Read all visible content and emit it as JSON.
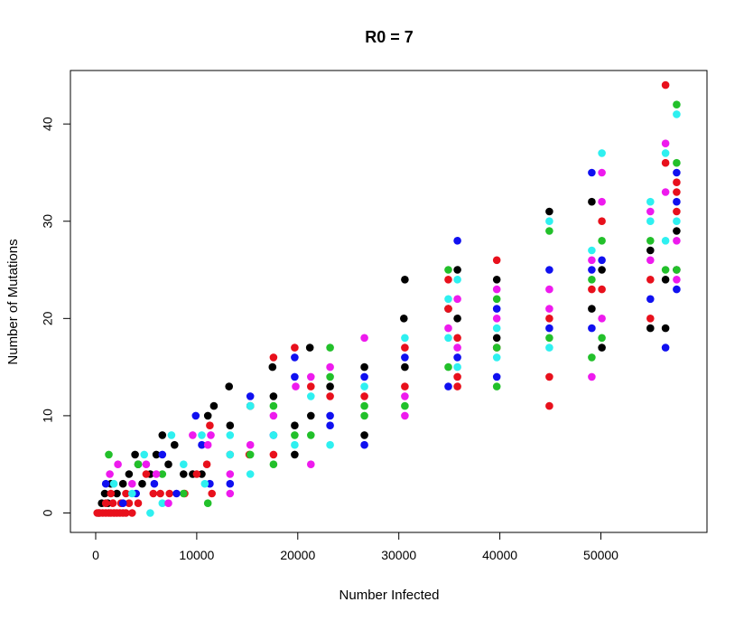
{
  "chart_data": {
    "type": "scatter",
    "title": "R0 = 7",
    "xlabel": "Number Infected",
    "ylabel": "Number of Mutations",
    "xlim": [
      -2500,
      60500
    ],
    "ylim": [
      -2,
      45.5
    ],
    "x_ticks": [
      0,
      10000,
      20000,
      30000,
      40000,
      50000
    ],
    "y_ticks": [
      0,
      10,
      20,
      30,
      40
    ],
    "grid": false,
    "legend": "none",
    "colors": {
      "black": "#000000",
      "red": "#e8101c",
      "green": "#22c02a",
      "blue": "#1010f0",
      "cyan": "#2ef0f0",
      "magenta": "#ee1aee"
    },
    "series": [
      {
        "color": "black",
        "points": [
          [
            300,
            0
          ],
          [
            600,
            1
          ],
          [
            900,
            2
          ],
          [
            1200,
            1
          ],
          [
            1500,
            3
          ],
          [
            2100,
            2
          ],
          [
            2700,
            3
          ],
          [
            3300,
            4
          ],
          [
            3900,
            6
          ],
          [
            4200,
            5
          ],
          [
            4600,
            3
          ],
          [
            5400,
            4
          ],
          [
            6000,
            6
          ],
          [
            6600,
            8
          ],
          [
            7200,
            5
          ],
          [
            7800,
            7
          ],
          [
            8700,
            4
          ],
          [
            9600,
            4
          ],
          [
            10500,
            4
          ],
          [
            11100,
            10
          ],
          [
            11700,
            11
          ],
          [
            13200,
            13
          ],
          [
            13300,
            9
          ],
          [
            15300,
            11
          ],
          [
            17500,
            15
          ],
          [
            17600,
            12
          ],
          [
            19700,
            6
          ],
          [
            19700,
            9
          ],
          [
            21200,
            17
          ],
          [
            21300,
            10
          ],
          [
            23200,
            13
          ],
          [
            26600,
            15
          ],
          [
            26600,
            8
          ],
          [
            30600,
            24
          ],
          [
            30500,
            20
          ],
          [
            30600,
            15
          ],
          [
            34900,
            21
          ],
          [
            35800,
            25
          ],
          [
            35800,
            20
          ],
          [
            39700,
            24
          ],
          [
            39700,
            18
          ],
          [
            44900,
            31
          ],
          [
            49100,
            32
          ],
          [
            49100,
            21
          ],
          [
            50100,
            25
          ],
          [
            50100,
            17
          ],
          [
            54900,
            27
          ],
          [
            54900,
            19
          ],
          [
            56400,
            24
          ],
          [
            56400,
            19
          ],
          [
            57500,
            29
          ],
          [
            57500,
            25
          ]
        ]
      },
      {
        "color": "red",
        "points": [
          [
            150,
            0
          ],
          [
            400,
            0
          ],
          [
            700,
            0
          ],
          [
            1000,
            0
          ],
          [
            1300,
            0
          ],
          [
            1500,
            0
          ],
          [
            1800,
            0
          ],
          [
            2100,
            0
          ],
          [
            2400,
            0
          ],
          [
            2700,
            0
          ],
          [
            3000,
            0
          ],
          [
            1000,
            1
          ],
          [
            1700,
            1
          ],
          [
            2500,
            1
          ],
          [
            3300,
            1
          ],
          [
            1500,
            2
          ],
          [
            3000,
            2
          ],
          [
            3600,
            0
          ],
          [
            4200,
            1
          ],
          [
            5000,
            4
          ],
          [
            5700,
            2
          ],
          [
            6400,
            2
          ],
          [
            7300,
            2
          ],
          [
            8800,
            2
          ],
          [
            10000,
            4
          ],
          [
            11300,
            9
          ],
          [
            11000,
            5
          ],
          [
            11500,
            2
          ],
          [
            13300,
            6
          ],
          [
            15200,
            6
          ],
          [
            17600,
            16
          ],
          [
            17600,
            6
          ],
          [
            19700,
            17
          ],
          [
            21300,
            13
          ],
          [
            23200,
            12
          ],
          [
            26600,
            12
          ],
          [
            30600,
            17
          ],
          [
            30600,
            13
          ],
          [
            34900,
            24
          ],
          [
            34900,
            21
          ],
          [
            35800,
            18
          ],
          [
            35800,
            14
          ],
          [
            35800,
            13
          ],
          [
            39700,
            26
          ],
          [
            39700,
            17
          ],
          [
            44900,
            20
          ],
          [
            44900,
            14
          ],
          [
            44900,
            11
          ],
          [
            49100,
            23
          ],
          [
            50100,
            30
          ],
          [
            50100,
            23
          ],
          [
            54900,
            24
          ],
          [
            54900,
            20
          ],
          [
            56400,
            44
          ],
          [
            56400,
            36
          ],
          [
            57500,
            34
          ],
          [
            57500,
            33
          ],
          [
            57500,
            31
          ]
        ]
      },
      {
        "color": "green",
        "points": [
          [
            1300,
            6
          ],
          [
            4200,
            5
          ],
          [
            6600,
            4
          ],
          [
            8700,
            2
          ],
          [
            11100,
            1
          ],
          [
            15300,
            6
          ],
          [
            17600,
            11
          ],
          [
            17600,
            5
          ],
          [
            19700,
            8
          ],
          [
            21300,
            8
          ],
          [
            23200,
            17
          ],
          [
            23200,
            14
          ],
          [
            26600,
            11
          ],
          [
            26600,
            10
          ],
          [
            30600,
            11
          ],
          [
            34900,
            25
          ],
          [
            34900,
            15
          ],
          [
            39700,
            22
          ],
          [
            39700,
            17
          ],
          [
            39700,
            13
          ],
          [
            44900,
            29
          ],
          [
            44900,
            18
          ],
          [
            49100,
            24
          ],
          [
            49100,
            16
          ],
          [
            50100,
            28
          ],
          [
            50100,
            18
          ],
          [
            54900,
            28
          ],
          [
            56400,
            25
          ],
          [
            57500,
            42
          ],
          [
            57500,
            36
          ],
          [
            57500,
            25
          ]
        ]
      },
      {
        "color": "blue",
        "points": [
          [
            1000,
            3
          ],
          [
            2700,
            1
          ],
          [
            4000,
            2
          ],
          [
            5800,
            3
          ],
          [
            6600,
            6
          ],
          [
            8000,
            2
          ],
          [
            9900,
            10
          ],
          [
            10500,
            7
          ],
          [
            11300,
            3
          ],
          [
            13300,
            3
          ],
          [
            15300,
            12
          ],
          [
            17600,
            8
          ],
          [
            19700,
            16
          ],
          [
            19700,
            14
          ],
          [
            23200,
            10
          ],
          [
            23200,
            9
          ],
          [
            26600,
            14
          ],
          [
            26600,
            7
          ],
          [
            30600,
            16
          ],
          [
            34900,
            13
          ],
          [
            35800,
            28
          ],
          [
            35800,
            16
          ],
          [
            39700,
            21
          ],
          [
            39700,
            14
          ],
          [
            44900,
            25
          ],
          [
            44900,
            19
          ],
          [
            49100,
            35
          ],
          [
            49100,
            25
          ],
          [
            49100,
            19
          ],
          [
            50100,
            26
          ],
          [
            54900,
            22
          ],
          [
            56400,
            17
          ],
          [
            57500,
            35
          ],
          [
            57500,
            32
          ],
          [
            57500,
            23
          ]
        ]
      },
      {
        "color": "cyan",
        "points": [
          [
            1800,
            3
          ],
          [
            3600,
            2
          ],
          [
            4800,
            6
          ],
          [
            5400,
            0
          ],
          [
            6600,
            1
          ],
          [
            7500,
            8
          ],
          [
            8700,
            5
          ],
          [
            10500,
            8
          ],
          [
            10800,
            3
          ],
          [
            13300,
            8
          ],
          [
            13300,
            6
          ],
          [
            15300,
            4
          ],
          [
            15300,
            11
          ],
          [
            17600,
            8
          ],
          [
            19700,
            7
          ],
          [
            21300,
            12
          ],
          [
            23200,
            7
          ],
          [
            26600,
            13
          ],
          [
            30600,
            18
          ],
          [
            34900,
            22
          ],
          [
            34900,
            18
          ],
          [
            35800,
            24
          ],
          [
            35800,
            15
          ],
          [
            39700,
            19
          ],
          [
            39700,
            16
          ],
          [
            44900,
            30
          ],
          [
            44900,
            17
          ],
          [
            49100,
            27
          ],
          [
            50100,
            37
          ],
          [
            54900,
            32
          ],
          [
            54900,
            30
          ],
          [
            56400,
            37
          ],
          [
            56400,
            28
          ],
          [
            57500,
            41
          ],
          [
            57500,
            30
          ]
        ]
      },
      {
        "color": "magenta",
        "points": [
          [
            1400,
            4
          ],
          [
            2200,
            5
          ],
          [
            3600,
            3
          ],
          [
            5000,
            5
          ],
          [
            6000,
            4
          ],
          [
            7200,
            1
          ],
          [
            9600,
            8
          ],
          [
            11100,
            7
          ],
          [
            11400,
            8
          ],
          [
            13300,
            4
          ],
          [
            13300,
            2
          ],
          [
            15300,
            7
          ],
          [
            17600,
            10
          ],
          [
            19800,
            13
          ],
          [
            21300,
            14
          ],
          [
            21300,
            5
          ],
          [
            23200,
            15
          ],
          [
            26600,
            18
          ],
          [
            30600,
            10
          ],
          [
            30600,
            12
          ],
          [
            34900,
            19
          ],
          [
            35800,
            22
          ],
          [
            35800,
            17
          ],
          [
            39700,
            23
          ],
          [
            39700,
            20
          ],
          [
            44900,
            23
          ],
          [
            44900,
            21
          ],
          [
            49100,
            26
          ],
          [
            49100,
            14
          ],
          [
            50100,
            35
          ],
          [
            50100,
            32
          ],
          [
            50100,
            20
          ],
          [
            54900,
            26
          ],
          [
            54900,
            31
          ],
          [
            56400,
            38
          ],
          [
            56400,
            33
          ],
          [
            57500,
            28
          ],
          [
            57500,
            24
          ]
        ]
      }
    ]
  }
}
